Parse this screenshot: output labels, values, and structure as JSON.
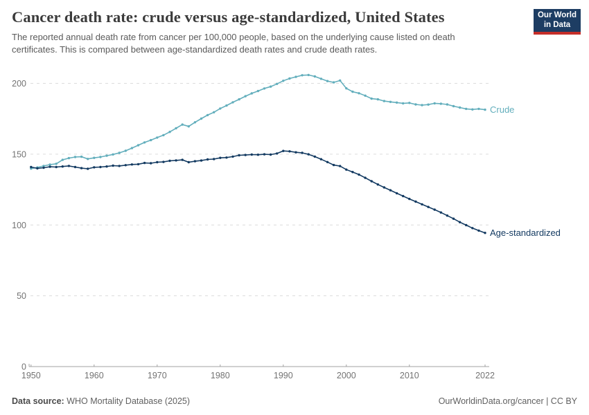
{
  "header": {
    "title": "Cancer death rate: crude versus age-standardized, United States",
    "subtitle": "The reported annual death rate from cancer per 100,000 people, based on the underlying cause listed on death certificates. This is compared between age-standardized death rates and crude death rates.",
    "logo": {
      "line1": "Our World",
      "line2": "in Data",
      "bg_color": "#1d3d63",
      "accent_color": "#c52e29"
    }
  },
  "chart_data": {
    "type": "line",
    "title": "Cancer death rate: crude versus age-standardized, United States",
    "xlabel": "",
    "ylabel": "",
    "ylim": [
      0,
      210
    ],
    "yticks": [
      0,
      50,
      100,
      150,
      200
    ],
    "xticks": [
      1950,
      1960,
      1970,
      1980,
      1990,
      2000,
      2010,
      2022
    ],
    "grid": "horizontal-dashed",
    "legend": "end-of-line-labels",
    "x": [
      1950,
      1951,
      1952,
      1953,
      1954,
      1955,
      1956,
      1957,
      1958,
      1959,
      1960,
      1961,
      1962,
      1963,
      1964,
      1965,
      1966,
      1967,
      1968,
      1969,
      1970,
      1971,
      1972,
      1973,
      1974,
      1975,
      1976,
      1977,
      1978,
      1979,
      1980,
      1981,
      1982,
      1983,
      1984,
      1985,
      1986,
      1987,
      1988,
      1989,
      1990,
      1991,
      1992,
      1993,
      1994,
      1995,
      1996,
      1997,
      1998,
      1999,
      2000,
      2001,
      2002,
      2003,
      2004,
      2005,
      2006,
      2007,
      2008,
      2009,
      2010,
      2011,
      2012,
      2013,
      2014,
      2015,
      2016,
      2017,
      2018,
      2019,
      2020,
      2021,
      2022
    ],
    "series": [
      {
        "name": "Crude",
        "color": "#62aebc",
        "values": [
          139.8,
          140.6,
          141.7,
          142.6,
          143.2,
          146.0,
          147.2,
          148.0,
          148.2,
          146.6,
          147.4,
          148.0,
          148.9,
          149.8,
          150.9,
          152.4,
          154.3,
          156.3,
          158.3,
          159.9,
          161.7,
          163.4,
          165.7,
          168.3,
          170.9,
          169.6,
          172.5,
          175.1,
          177.6,
          179.6,
          182.2,
          184.3,
          186.6,
          188.7,
          190.9,
          192.9,
          194.6,
          196.4,
          197.7,
          199.6,
          201.8,
          203.4,
          204.6,
          205.7,
          205.9,
          204.9,
          203.2,
          201.6,
          200.7,
          202.0,
          196.5,
          194.1,
          193.0,
          191.3,
          189.2,
          188.7,
          187.5,
          186.9,
          186.4,
          185.9,
          186.2,
          185.1,
          184.6,
          185.0,
          185.9,
          185.6,
          185.1,
          183.9,
          182.9,
          182.0,
          181.6,
          182.0,
          181.4
        ]
      },
      {
        "name": "Age-standardized",
        "color": "#133a61",
        "values": [
          140.9,
          140.0,
          140.4,
          141.1,
          140.9,
          141.3,
          141.7,
          140.9,
          140.1,
          139.7,
          140.7,
          140.9,
          141.3,
          141.9,
          141.7,
          142.2,
          142.7,
          142.9,
          143.8,
          143.6,
          144.3,
          144.5,
          145.3,
          145.6,
          146.0,
          144.3,
          145.0,
          145.5,
          146.3,
          146.5,
          147.4,
          147.6,
          148.3,
          149.2,
          149.4,
          149.7,
          149.6,
          149.9,
          149.7,
          150.5,
          152.3,
          152.0,
          151.3,
          150.9,
          149.9,
          148.3,
          146.4,
          144.4,
          142.3,
          141.6,
          139.1,
          137.4,
          135.6,
          133.3,
          130.9,
          128.6,
          126.5,
          124.5,
          122.4,
          120.4,
          118.4,
          116.5,
          114.6,
          112.7,
          110.8,
          108.8,
          106.6,
          104.4,
          102.0,
          99.9,
          97.8,
          96.0,
          94.4
        ]
      }
    ]
  },
  "footer": {
    "source_label": "Data source:",
    "source_value": " WHO Mortality Database (2025)",
    "credit": "OurWorldinData.org/cancer | CC BY"
  }
}
